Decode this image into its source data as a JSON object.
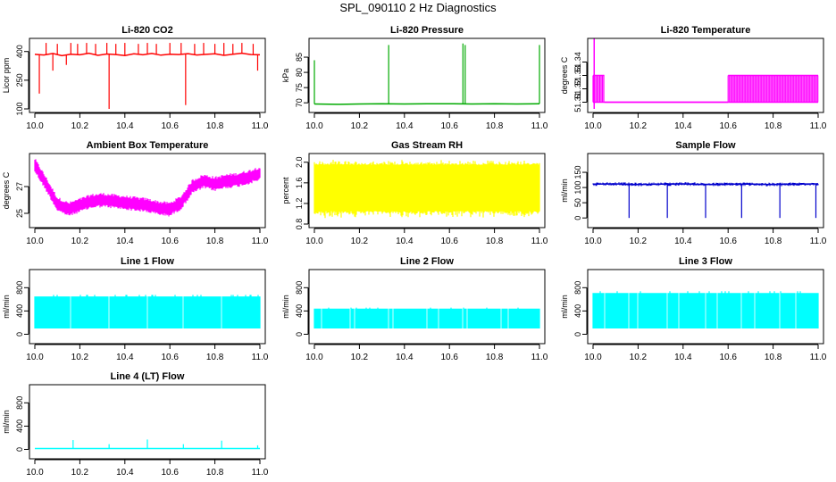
{
  "page_title": "SPL_090110  2 Hz Diagnostics",
  "chart_data": [
    {
      "type": "line",
      "title": "Li-820 CO2",
      "ylabel": "Licor ppm",
      "color": "#ff0000",
      "xlim": [
        10.0,
        11.0
      ],
      "ylim": [
        100,
        450
      ],
      "yticks": [
        100,
        250,
        400
      ],
      "ytick_labels": [
        "100",
        "250",
        "400"
      ],
      "xticks": [
        10.0,
        10.2,
        10.4,
        10.6,
        10.8,
        11.0
      ],
      "xtick_labels": [
        "10.0",
        "10.2",
        "10.4",
        "10.6",
        "10.8",
        "11.0"
      ],
      "baseline": {
        "x": [
          10.0,
          10.04,
          10.08,
          10.12,
          10.16,
          10.2,
          10.24,
          10.28,
          10.32,
          10.36,
          10.4,
          10.44,
          10.48,
          10.52,
          10.56,
          10.6,
          10.64,
          10.68,
          10.72,
          10.76,
          10.8,
          10.84,
          10.88,
          10.92,
          10.96,
          11.0
        ],
        "y": [
          385,
          382,
          390,
          378,
          386,
          383,
          391,
          380,
          387,
          384,
          379,
          388,
          383,
          390,
          381,
          386,
          384,
          389,
          382,
          385,
          388,
          380,
          386,
          391,
          384,
          383
        ]
      },
      "spikes": [
        [
          10.02,
          180
        ],
        [
          10.05,
          445
        ],
        [
          10.08,
          300
        ],
        [
          10.1,
          440
        ],
        [
          10.14,
          330
        ],
        [
          10.16,
          445
        ],
        [
          10.19,
          440
        ],
        [
          10.23,
          445
        ],
        [
          10.27,
          440
        ],
        [
          10.32,
          445
        ],
        [
          10.33,
          100
        ],
        [
          10.36,
          440
        ],
        [
          10.4,
          445
        ],
        [
          10.46,
          440
        ],
        [
          10.5,
          445
        ],
        [
          10.54,
          440
        ],
        [
          10.6,
          445
        ],
        [
          10.65,
          445
        ],
        [
          10.67,
          120
        ],
        [
          10.71,
          440
        ],
        [
          10.75,
          445
        ],
        [
          10.8,
          440
        ],
        [
          10.84,
          445
        ],
        [
          10.88,
          440
        ],
        [
          10.92,
          445
        ],
        [
          10.97,
          440
        ],
        [
          10.99,
          300
        ]
      ]
    },
    {
      "type": "line",
      "title": "Li-820 Pressure",
      "ylabel": "kPa",
      "color": "#00aa00",
      "xlim": [
        10.0,
        11.0
      ],
      "ylim": [
        68,
        90
      ],
      "yticks": [
        70,
        75,
        80,
        85
      ],
      "ytick_labels": [
        "70",
        "75",
        "80",
        "85"
      ],
      "xticks": [
        10.0,
        10.2,
        10.4,
        10.6,
        10.8,
        11.0
      ],
      "xtick_labels": [
        "10.0",
        "10.2",
        "10.4",
        "10.6",
        "10.8",
        "11.0"
      ],
      "baseline": {
        "x": [
          10.0,
          10.1,
          10.2,
          10.3,
          10.4,
          10.5,
          10.6,
          10.7,
          10.8,
          10.9,
          11.0
        ],
        "y": [
          69.6,
          69.5,
          69.6,
          69.7,
          69.6,
          69.7,
          69.7,
          69.6,
          69.7,
          69.6,
          69.7
        ]
      },
      "spikes": [
        [
          10.0,
          84
        ],
        [
          10.33,
          89
        ],
        [
          10.66,
          89.5
        ],
        [
          10.67,
          89
        ],
        [
          11.0,
          89
        ]
      ]
    },
    {
      "type": "area",
      "title": "Li-820 Temperature",
      "ylabel": "degrees C",
      "color": "#ff00ff",
      "xlim": [
        10.0,
        11.0
      ],
      "ylim": [
        51.305,
        51.355
      ],
      "yticks": [
        51.31,
        51.32,
        51.33,
        51.34
      ],
      "ytick_labels": [
        "51.31",
        "51.32",
        "51.33",
        "51.34"
      ],
      "xticks": [
        10.0,
        10.2,
        10.4,
        10.6,
        10.8,
        11.0
      ],
      "xtick_labels": [
        "10.0",
        "10.2",
        "10.4",
        "10.6",
        "10.8",
        "11.0"
      ],
      "segments": [
        {
          "x0": 10.0,
          "x1": 10.05,
          "low": 51.31,
          "high": 51.33
        },
        {
          "x0": 10.05,
          "x1": 10.6,
          "low": 51.31,
          "high": 51.31
        },
        {
          "x0": 10.6,
          "x1": 11.0,
          "low": 51.31,
          "high": 51.33
        }
      ],
      "spikes": [
        [
          10.005,
          51.36
        ]
      ]
    },
    {
      "type": "area",
      "title": "Ambient Box Temperature",
      "ylabel": "degrees C",
      "color": "#ff00ff",
      "xlim": [
        10.0,
        11.0
      ],
      "ylim": [
        24.2,
        29.2
      ],
      "yticks": [
        25,
        27
      ],
      "ytick_labels": [
        "25",
        "27"
      ],
      "xticks": [
        10.0,
        10.2,
        10.4,
        10.6,
        10.8,
        11.0
      ],
      "xtick_labels": [
        "10.0",
        "10.2",
        "10.4",
        "10.6",
        "10.8",
        "11.0"
      ],
      "center": {
        "x": [
          10.0,
          10.05,
          10.1,
          10.15,
          10.2,
          10.25,
          10.3,
          10.35,
          10.4,
          10.45,
          10.5,
          10.55,
          10.6,
          10.65,
          10.7,
          10.75,
          10.8,
          10.85,
          10.9,
          10.95,
          11.0
        ],
        "y": [
          28.6,
          27.2,
          25.7,
          25.3,
          25.6,
          25.9,
          26.0,
          25.9,
          25.8,
          25.7,
          25.6,
          25.4,
          25.3,
          25.8,
          27.0,
          27.4,
          27.2,
          27.4,
          27.5,
          27.7,
          28.0
        ]
      },
      "band": 0.55
    },
    {
      "type": "area",
      "title": "Gas Stream RH",
      "ylabel": "percent",
      "color": "#ffff00",
      "xlim": [
        10.0,
        11.0
      ],
      "ylim": [
        0.8,
        2.1
      ],
      "yticks": [
        0.8,
        1.2,
        1.6,
        2.0
      ],
      "ytick_labels": [
        "0.8",
        "1.2",
        "1.6",
        "2.0"
      ],
      "xticks": [
        10.0,
        10.2,
        10.4,
        10.6,
        10.8,
        11.0
      ],
      "xtick_labels": [
        "10.0",
        "10.2",
        "10.4",
        "10.6",
        "10.8",
        "11.0"
      ],
      "low": 0.9,
      "high": 2.05,
      "dense_low": 1.05,
      "dense_high": 1.95
    },
    {
      "type": "line",
      "title": "Sample Flow",
      "ylabel": "ml/min",
      "color": "#0000cc",
      "xlim": [
        10.0,
        11.0
      ],
      "ylim": [
        -20,
        200
      ],
      "yticks": [
        0,
        50,
        100,
        150
      ],
      "ytick_labels": [
        "0",
        "50",
        "100",
        "150"
      ],
      "xticks": [
        10.0,
        10.2,
        10.4,
        10.6,
        10.8,
        11.0
      ],
      "xtick_labels": [
        "10.0",
        "10.2",
        "10.4",
        "10.6",
        "10.8",
        "11.0"
      ],
      "baseline": {
        "x": [
          10.0,
          10.1,
          10.2,
          10.3,
          10.4,
          10.5,
          10.6,
          10.7,
          10.8,
          10.9,
          11.0
        ],
        "y": [
          111,
          112,
          110,
          111,
          112,
          110,
          111,
          111,
          110,
          111,
          112
        ]
      },
      "band": 6,
      "spikes": [
        [
          10.16,
          0
        ],
        [
          10.33,
          0
        ],
        [
          10.5,
          0
        ],
        [
          10.66,
          0
        ],
        [
          10.83,
          0
        ],
        [
          10.99,
          0
        ]
      ]
    },
    {
      "type": "area",
      "title": "Line 1 Flow",
      "ylabel": "ml/min",
      "color": "#00ffff",
      "xlim": [
        10.0,
        11.0
      ],
      "ylim": [
        -100,
        1050
      ],
      "yticks": [
        0,
        400,
        800
      ],
      "ytick_labels": [
        "0",
        "400",
        "800"
      ],
      "xticks": [
        10.0,
        10.2,
        10.4,
        10.6,
        10.8,
        11.0
      ],
      "xtick_labels": [
        "10.0",
        "10.2",
        "10.4",
        "10.6",
        "10.8",
        "11.0"
      ],
      "low": 100,
      "high": 650,
      "gaps": [
        10.16,
        10.33,
        10.5,
        10.66,
        10.83
      ]
    },
    {
      "type": "area",
      "title": "Line 2 Flow",
      "ylabel": "ml/min",
      "color": "#00ffff",
      "xlim": [
        10.0,
        11.0
      ],
      "ylim": [
        -100,
        1050
      ],
      "yticks": [
        0,
        400,
        800
      ],
      "ytick_labels": [
        "0",
        "400",
        "800"
      ],
      "xticks": [
        10.0,
        10.2,
        10.4,
        10.6,
        10.8,
        11.0
      ],
      "xtick_labels": [
        "10.0",
        "10.2",
        "10.4",
        "10.6",
        "10.8",
        "11.0"
      ],
      "low": 100,
      "high": 440,
      "gaps": [
        10.03,
        10.16,
        10.18,
        10.33,
        10.35,
        10.5,
        10.55,
        10.66,
        10.68,
        10.83,
        10.86
      ]
    },
    {
      "type": "area",
      "title": "Line 3 Flow",
      "ylabel": "ml/min",
      "color": "#00ffff",
      "xlim": [
        10.0,
        11.0
      ],
      "ylim": [
        -100,
        1050
      ],
      "yticks": [
        0,
        400,
        800
      ],
      "ytick_labels": [
        "0",
        "400",
        "800"
      ],
      "xticks": [
        10.0,
        10.2,
        10.4,
        10.6,
        10.8,
        11.0
      ],
      "xtick_labels": [
        "10.0",
        "10.2",
        "10.4",
        "10.6",
        "10.8",
        "11.0"
      ],
      "low": 100,
      "high": 710,
      "gaps": [
        10.05,
        10.16,
        10.2,
        10.33,
        10.38,
        10.5,
        10.55,
        10.66,
        10.72,
        10.83,
        10.9
      ]
    },
    {
      "type": "line",
      "title": "Line 4 (LT) Flow",
      "ylabel": "ml/min",
      "color": "#00ffff",
      "xlim": [
        10.0,
        11.0
      ],
      "ylim": [
        -100,
        1050
      ],
      "yticks": [
        0,
        400,
        800
      ],
      "ytick_labels": [
        "0",
        "400",
        "800"
      ],
      "xticks": [
        10.0,
        10.2,
        10.4,
        10.6,
        10.8,
        11.0
      ],
      "xtick_labels": [
        "10.0",
        "10.2",
        "10.4",
        "10.6",
        "10.8",
        "11.0"
      ],
      "baseline": {
        "x": [
          10.0,
          11.0
        ],
        "y": [
          15,
          15
        ]
      },
      "spikes": [
        [
          10.17,
          160
        ],
        [
          10.33,
          90
        ],
        [
          10.5,
          170
        ],
        [
          10.66,
          90
        ],
        [
          10.83,
          150
        ],
        [
          10.99,
          70
        ]
      ]
    }
  ]
}
